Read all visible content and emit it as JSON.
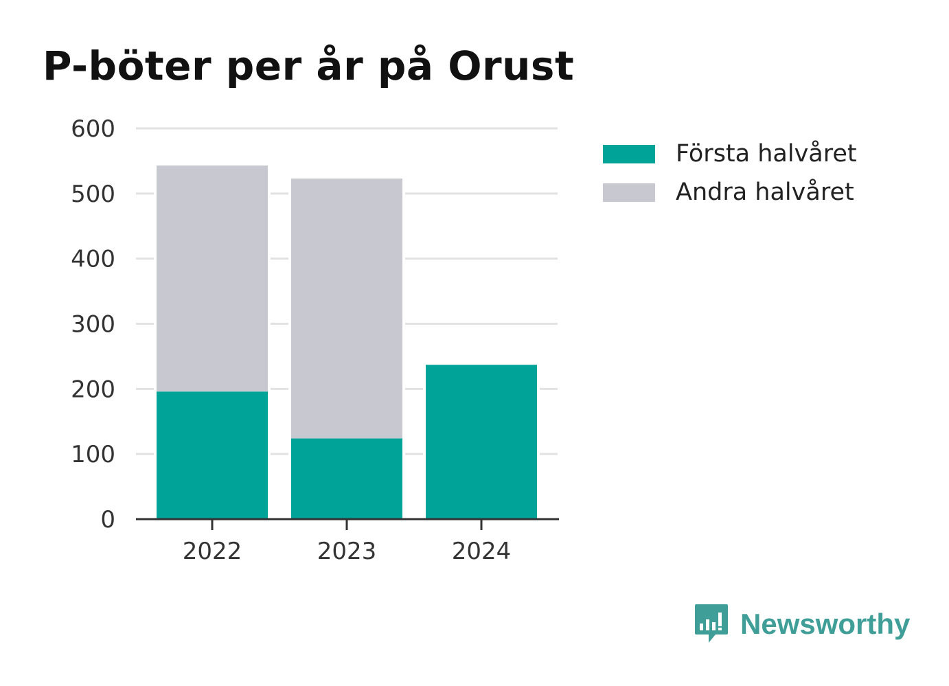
{
  "title": "P-böter per år på Orust",
  "colors": {
    "first_half": "#00a398",
    "second_half": "#c8c8d0",
    "grid": "#e2e2e2",
    "axis": "#333333",
    "text": "#333333",
    "brand": "#3f9e98"
  },
  "chart_data": {
    "type": "bar",
    "stacked": true,
    "categories": [
      "2022",
      "2023",
      "2024"
    ],
    "series": [
      {
        "name": "Första halvåret",
        "values": [
          196,
          124,
          237
        ]
      },
      {
        "name": "Andra halvåret",
        "values": [
          347,
          399,
          0
        ]
      }
    ],
    "ylim": [
      0,
      600
    ],
    "yticks": [
      0,
      100,
      200,
      300,
      400,
      500,
      600
    ],
    "grid": true,
    "legend_position": "right"
  },
  "legend": {
    "items": [
      {
        "label": "Första halvåret",
        "icon": "swatch-teal"
      },
      {
        "label": "Andra halvåret",
        "icon": "swatch-grey"
      }
    ]
  },
  "brand": {
    "name": "Newsworthy",
    "icon": "newsworthy-logo-icon"
  }
}
